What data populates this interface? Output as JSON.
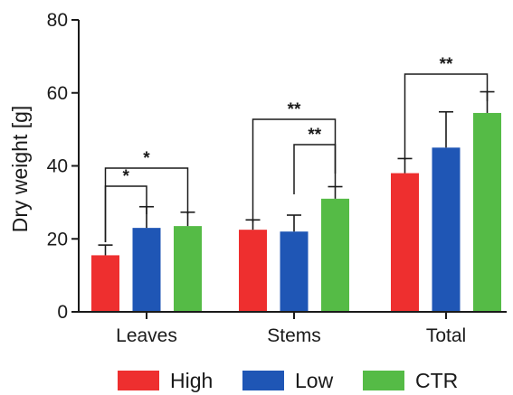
{
  "chart_data": {
    "type": "bar",
    "ylabel": "Dry weight [g]",
    "ylim": [
      0,
      80
    ],
    "yticks": [
      0,
      20,
      40,
      60,
      80
    ],
    "categories": [
      "Leaves",
      "Stems",
      "Total"
    ],
    "series": [
      {
        "name": "High",
        "color": "#ee2f2f",
        "values": [
          15.5,
          22.5,
          38.0
        ],
        "errors": [
          2.8,
          2.7,
          4.0
        ]
      },
      {
        "name": "Low",
        "color": "#1f56b5",
        "values": [
          23.0,
          22.0,
          45.0
        ],
        "errors": [
          5.8,
          4.5,
          9.8
        ]
      },
      {
        "name": "CTR",
        "color": "#55bb46",
        "values": [
          23.5,
          31.0,
          54.5
        ],
        "errors": [
          3.8,
          3.3,
          5.8
        ]
      }
    ],
    "significance": [
      {
        "category": 0,
        "from": 0,
        "to": 1,
        "label": "*"
      },
      {
        "category": 0,
        "from": 0,
        "to": 2,
        "label": "*"
      },
      {
        "category": 1,
        "from": 0,
        "to": 2,
        "label": "**"
      },
      {
        "category": 1,
        "from": 1,
        "to": 2,
        "label": "**"
      },
      {
        "category": 2,
        "from": 0,
        "to": 2,
        "label": "**"
      }
    ],
    "legend": "bottom",
    "grid": false
  }
}
